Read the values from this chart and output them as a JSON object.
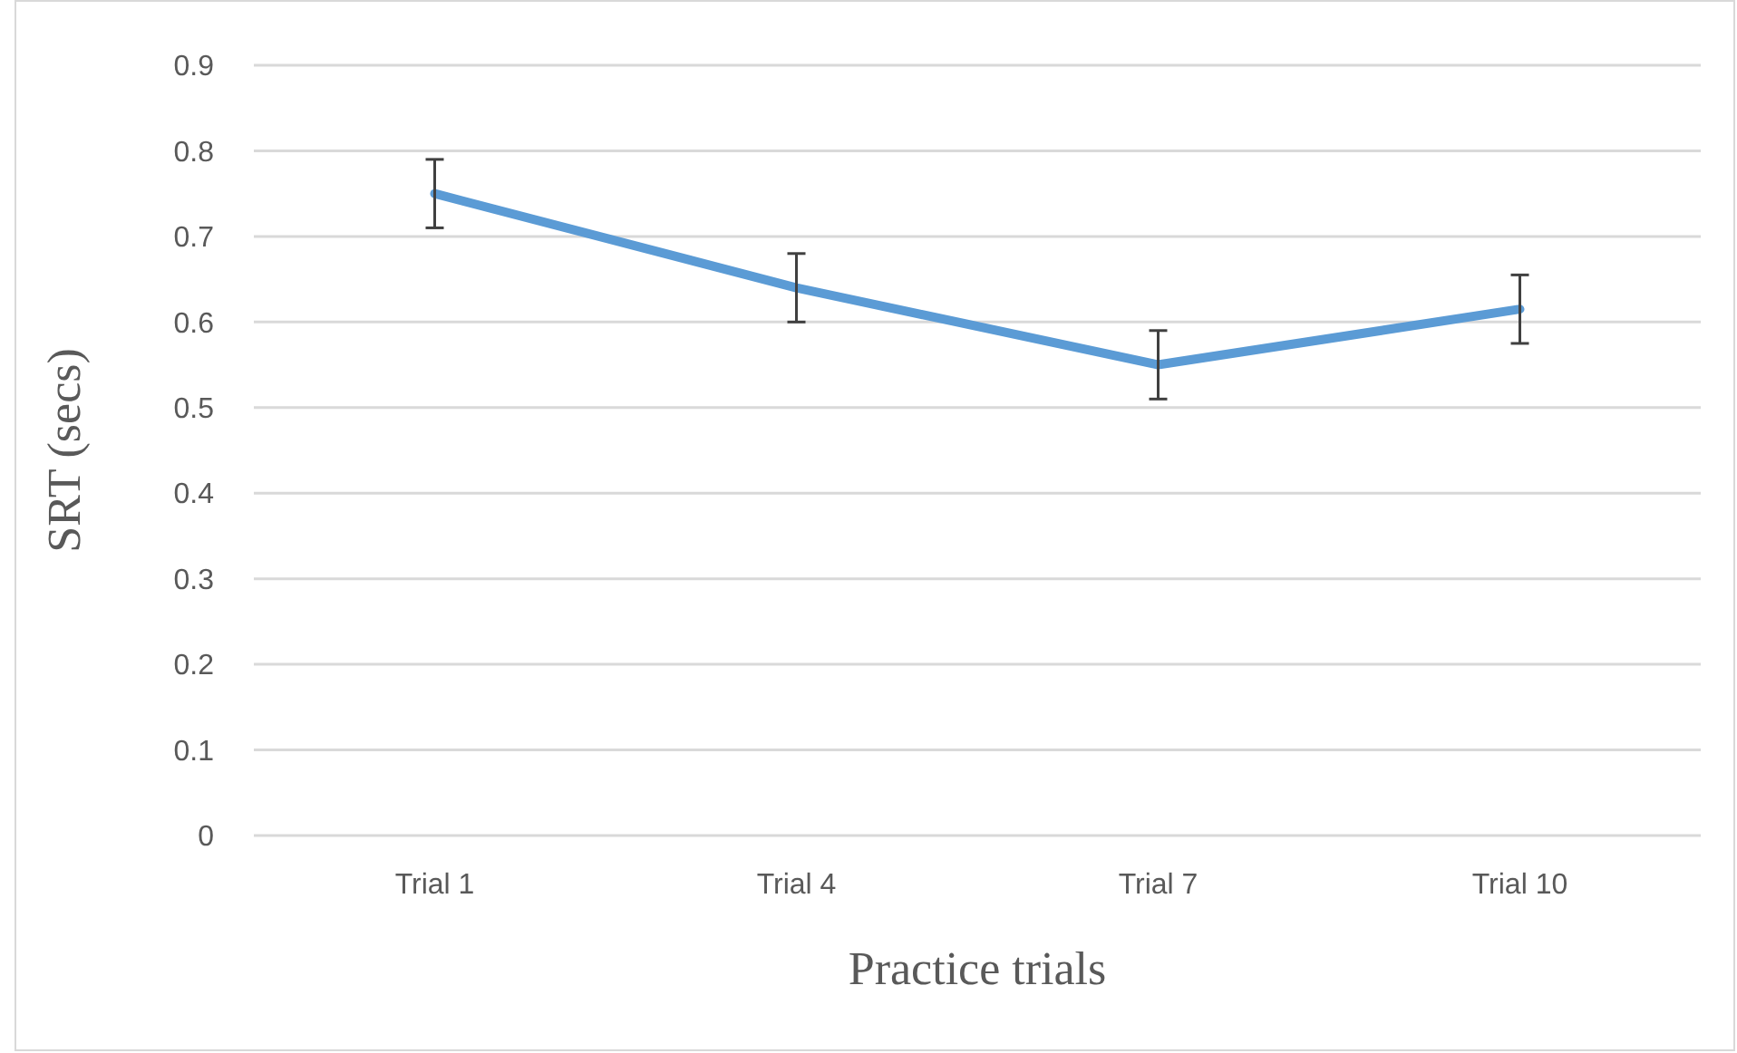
{
  "chart_data": {
    "type": "line",
    "xlabel": "Practice trials",
    "ylabel": "SRT (secs)",
    "categories": [
      "Trial 1",
      "Trial 4",
      "Trial 7",
      "Trial 10"
    ],
    "series": [
      {
        "color": "#5b9bd5",
        "values": [
          0.75,
          0.64,
          0.55,
          0.615
        ],
        "errors": [
          0.04,
          0.04,
          0.04,
          0.04
        ]
      }
    ],
    "ylim": [
      0,
      0.9
    ],
    "yticks": [
      0,
      0.1,
      0.2,
      0.3,
      0.4,
      0.5,
      0.6,
      0.7,
      0.8,
      0.9
    ],
    "grid": "y",
    "marker": "none",
    "line_style": "solid"
  }
}
